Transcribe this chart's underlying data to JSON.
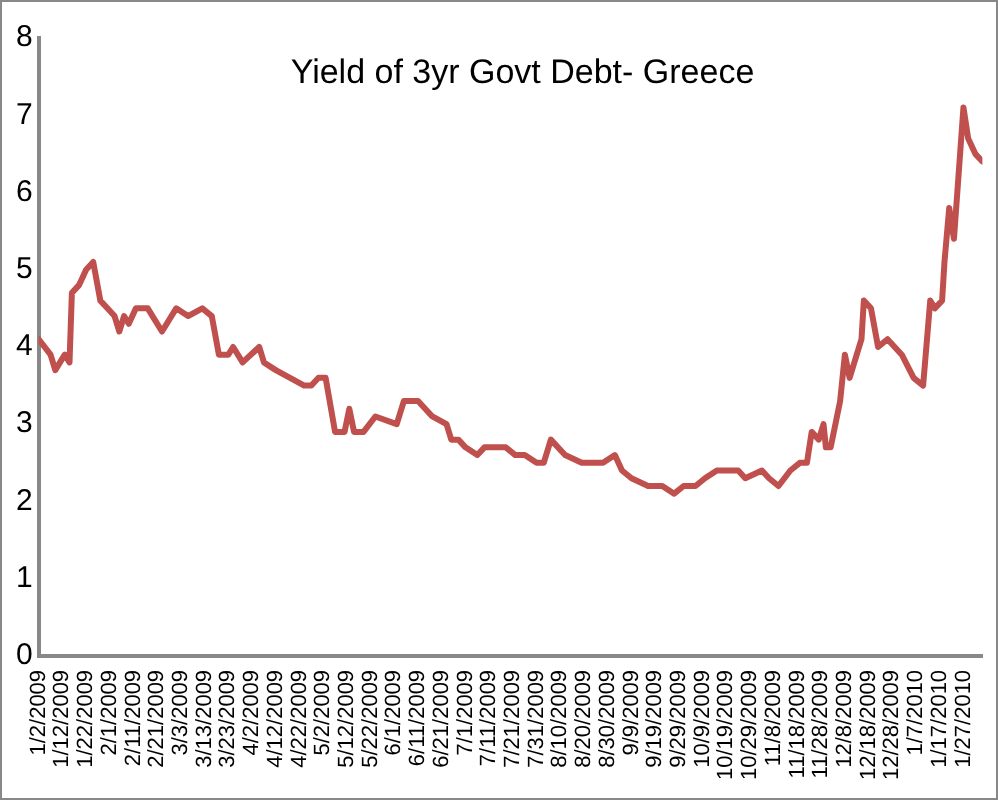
{
  "chart_data": {
    "type": "line",
    "title": "Yield of 3yr Govt Debt- Greece",
    "x": [
      "2009-01-02",
      "2009-01-07",
      "2009-01-09",
      "2009-01-13",
      "2009-01-15",
      "2009-01-16",
      "2009-01-19",
      "2009-01-22",
      "2009-01-25",
      "2009-01-28",
      "2009-01-31",
      "2009-02-03",
      "2009-02-05",
      "2009-02-07",
      "2009-02-09",
      "2009-02-12",
      "2009-02-17",
      "2009-02-23",
      "2009-03-01",
      "2009-03-06",
      "2009-03-12",
      "2009-03-16",
      "2009-03-19",
      "2009-03-23",
      "2009-03-25",
      "2009-03-29",
      "2009-04-05",
      "2009-04-07",
      "2009-04-12",
      "2009-04-18",
      "2009-04-24",
      "2009-04-27",
      "2009-04-30",
      "2009-05-03",
      "2009-05-07",
      "2009-05-11",
      "2009-05-13",
      "2009-05-15",
      "2009-05-19",
      "2009-05-24",
      "2009-06-02",
      "2009-06-05",
      "2009-06-11",
      "2009-06-17",
      "2009-06-23",
      "2009-06-25",
      "2009-06-28",
      "2009-07-01",
      "2009-07-06",
      "2009-07-09",
      "2009-07-15",
      "2009-07-18",
      "2009-07-22",
      "2009-07-26",
      "2009-07-31",
      "2009-08-03",
      "2009-08-06",
      "2009-08-12",
      "2009-08-19",
      "2009-08-24",
      "2009-08-28",
      "2009-09-02",
      "2009-09-05",
      "2009-09-09",
      "2009-09-16",
      "2009-09-22",
      "2009-09-27",
      "2009-10-01",
      "2009-10-06",
      "2009-10-10",
      "2009-10-15",
      "2009-10-19",
      "2009-10-24",
      "2009-10-27",
      "2009-11-03",
      "2009-11-06",
      "2009-11-10",
      "2009-11-15",
      "2009-11-19",
      "2009-11-22",
      "2009-11-24",
      "2009-11-27",
      "2009-11-29",
      "2009-11-30",
      "2009-12-02",
      "2009-12-06",
      "2009-12-08",
      "2009-12-10",
      "2009-12-13",
      "2009-12-15",
      "2009-12-16",
      "2009-12-19",
      "2009-12-22",
      "2009-12-26",
      "2010-01-01",
      "2010-01-06",
      "2010-01-10",
      "2010-01-13",
      "2010-01-15",
      "2010-01-18",
      "2010-01-19",
      "2010-01-21",
      "2010-01-23",
      "2010-01-27",
      "2010-01-29",
      "2010-02-01",
      "2010-02-04"
    ],
    "series": [
      {
        "color": "#c0504d",
        "values": [
          4.1,
          3.9,
          3.7,
          3.9,
          3.8,
          4.7,
          4.8,
          5.0,
          5.1,
          4.6,
          4.5,
          4.4,
          4.2,
          4.4,
          4.3,
          4.5,
          4.5,
          4.2,
          4.5,
          4.4,
          4.5,
          4.4,
          3.9,
          3.9,
          4.0,
          3.8,
          4.0,
          3.8,
          3.7,
          3.6,
          3.5,
          3.5,
          3.6,
          3.6,
          2.9,
          2.9,
          3.2,
          2.9,
          2.9,
          3.1,
          3.0,
          3.3,
          3.3,
          3.1,
          3.0,
          2.8,
          2.8,
          2.7,
          2.6,
          2.7,
          2.7,
          2.7,
          2.6,
          2.6,
          2.5,
          2.5,
          2.8,
          2.6,
          2.5,
          2.5,
          2.5,
          2.6,
          2.4,
          2.3,
          2.2,
          2.2,
          2.1,
          2.2,
          2.2,
          2.3,
          2.4,
          2.4,
          2.4,
          2.3,
          2.4,
          2.3,
          2.2,
          2.4,
          2.5,
          2.5,
          2.9,
          2.8,
          3.0,
          2.7,
          2.7,
          3.3,
          3.9,
          3.6,
          3.9,
          4.1,
          4.6,
          4.5,
          4.0,
          4.1,
          3.9,
          3.6,
          3.5,
          4.6,
          4.5,
          4.6,
          5.1,
          5.8,
          5.4,
          7.1,
          6.7,
          6.5,
          6.4
        ]
      }
    ],
    "xlim": [
      "2009-01-02",
      "2010-02-04"
    ],
    "xticks": [
      {
        "value": "2009-01-02",
        "label": "1/2/2009"
      },
      {
        "value": "2009-01-12",
        "label": "1/12/2009"
      },
      {
        "value": "2009-01-22",
        "label": "1/22/2009"
      },
      {
        "value": "2009-02-01",
        "label": "2/1/2009"
      },
      {
        "value": "2009-02-11",
        "label": "2/11/2009"
      },
      {
        "value": "2009-02-21",
        "label": "2/21/2009"
      },
      {
        "value": "2009-03-03",
        "label": "3/3/2009"
      },
      {
        "value": "2009-03-13",
        "label": "3/13/2009"
      },
      {
        "value": "2009-03-23",
        "label": "3/23/2009"
      },
      {
        "value": "2009-04-02",
        "label": "4/2/2009"
      },
      {
        "value": "2009-04-12",
        "label": "4/12/2009"
      },
      {
        "value": "2009-04-22",
        "label": "4/22/2009"
      },
      {
        "value": "2009-05-02",
        "label": "5/2/2009"
      },
      {
        "value": "2009-05-12",
        "label": "5/12/2009"
      },
      {
        "value": "2009-05-22",
        "label": "5/22/2009"
      },
      {
        "value": "2009-06-01",
        "label": "6/1/2009"
      },
      {
        "value": "2009-06-11",
        "label": "6/11/2009"
      },
      {
        "value": "2009-06-21",
        "label": "6/21/2009"
      },
      {
        "value": "2009-07-01",
        "label": "7/1/2009"
      },
      {
        "value": "2009-07-11",
        "label": "7/11/2009"
      },
      {
        "value": "2009-07-21",
        "label": "7/21/2009"
      },
      {
        "value": "2009-07-31",
        "label": "7/31/2009"
      },
      {
        "value": "2009-08-10",
        "label": "8/10/2009"
      },
      {
        "value": "2009-08-20",
        "label": "8/20/2009"
      },
      {
        "value": "2009-08-30",
        "label": "8/30/2009"
      },
      {
        "value": "2009-09-09",
        "label": "9/9/2009"
      },
      {
        "value": "2009-09-19",
        "label": "9/19/2009"
      },
      {
        "value": "2009-09-29",
        "label": "9/29/2009"
      },
      {
        "value": "2009-10-09",
        "label": "10/9/2009"
      },
      {
        "value": "2009-10-19",
        "label": "10/19/2009"
      },
      {
        "value": "2009-10-29",
        "label": "10/29/2009"
      },
      {
        "value": "2009-11-08",
        "label": "11/8/2009"
      },
      {
        "value": "2009-11-18",
        "label": "11/18/2009"
      },
      {
        "value": "2009-11-28",
        "label": "11/28/2009"
      },
      {
        "value": "2009-12-08",
        "label": "12/8/2009"
      },
      {
        "value": "2009-12-18",
        "label": "12/18/2009"
      },
      {
        "value": "2009-12-28",
        "label": "12/28/2009"
      },
      {
        "value": "2010-01-07",
        "label": "1/7/2010"
      },
      {
        "value": "2010-01-17",
        "label": "1/17/2010"
      },
      {
        "value": "2010-01-27",
        "label": "1/27/2010"
      }
    ],
    "ylim": [
      0,
      8
    ],
    "yticks": [
      0,
      1,
      2,
      3,
      4,
      5,
      6,
      7,
      8
    ],
    "grid": false,
    "legend": false,
    "marker": "none",
    "line_style": "solid"
  }
}
